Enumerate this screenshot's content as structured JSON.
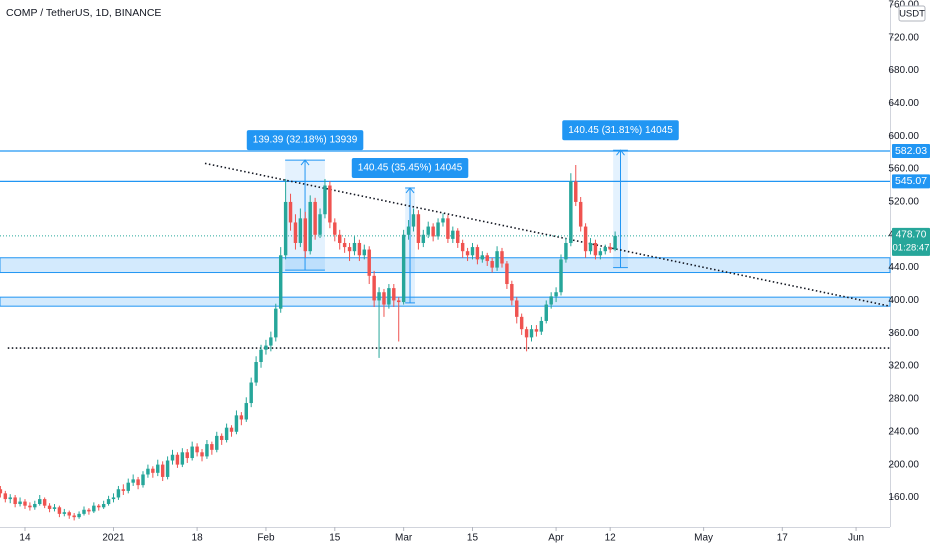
{
  "header": {
    "title": "COMP / TetherUS, 1D, BINANCE",
    "currency": "USDT"
  },
  "chart_data": {
    "type": "candlestick",
    "up_color": "#26a69a",
    "down_color": "#ef5350",
    "ohlc": [
      [
        170,
        174,
        160,
        165
      ],
      [
        165,
        168,
        154,
        158
      ],
      [
        158,
        164,
        153,
        160
      ],
      [
        160,
        163,
        148,
        152
      ],
      [
        152,
        160,
        149,
        155
      ],
      [
        155,
        158,
        146,
        150
      ],
      [
        150,
        154,
        144,
        148
      ],
      [
        148,
        156,
        145,
        152
      ],
      [
        152,
        163,
        150,
        158
      ],
      [
        158,
        160,
        147,
        150
      ],
      [
        150,
        153,
        142,
        146
      ],
      [
        146,
        152,
        143,
        148
      ],
      [
        148,
        150,
        136,
        140
      ],
      [
        140,
        146,
        137,
        142
      ],
      [
        142,
        144,
        134,
        138
      ],
      [
        138,
        141,
        132,
        136
      ],
      [
        136,
        143,
        134,
        140
      ],
      [
        140,
        149,
        138,
        145
      ],
      [
        145,
        147,
        139,
        143
      ],
      [
        143,
        154,
        141,
        150
      ],
      [
        150,
        152,
        144,
        148
      ],
      [
        148,
        156,
        146,
        152
      ],
      [
        152,
        162,
        150,
        158
      ],
      [
        158,
        165,
        154,
        160
      ],
      [
        160,
        174,
        157,
        170
      ],
      [
        170,
        176,
        163,
        168
      ],
      [
        168,
        183,
        165,
        178
      ],
      [
        178,
        188,
        174,
        182
      ],
      [
        182,
        185,
        170,
        175
      ],
      [
        175,
        192,
        172,
        188
      ],
      [
        188,
        200,
        184,
        195
      ],
      [
        195,
        198,
        184,
        190
      ],
      [
        190,
        206,
        186,
        200
      ],
      [
        200,
        204,
        180,
        185
      ],
      [
        185,
        210,
        182,
        205
      ],
      [
        205,
        218,
        200,
        212
      ],
      [
        212,
        215,
        196,
        200
      ],
      [
        200,
        220,
        197,
        215
      ],
      [
        215,
        219,
        202,
        208
      ],
      [
        208,
        228,
        205,
        222
      ],
      [
        222,
        226,
        210,
        215
      ],
      [
        215,
        219,
        204,
        210
      ],
      [
        210,
        230,
        207,
        225
      ],
      [
        225,
        228,
        212,
        218
      ],
      [
        218,
        240,
        215,
        235
      ],
      [
        235,
        238,
        224,
        230
      ],
      [
        230,
        250,
        227,
        245
      ],
      [
        245,
        248,
        234,
        240
      ],
      [
        240,
        266,
        237,
        260
      ],
      [
        260,
        264,
        248,
        255
      ],
      [
        255,
        282,
        252,
        275
      ],
      [
        275,
        306,
        270,
        300
      ],
      [
        300,
        332,
        296,
        325
      ],
      [
        325,
        346,
        318,
        340
      ],
      [
        340,
        352,
        334,
        345
      ],
      [
        345,
        362,
        338,
        355
      ],
      [
        355,
        396,
        350,
        390
      ],
      [
        390,
        465,
        385,
        455
      ],
      [
        455,
        548,
        450,
        520
      ],
      [
        520,
        530,
        485,
        495
      ],
      [
        495,
        505,
        462,
        470
      ],
      [
        470,
        512,
        465,
        500
      ],
      [
        500,
        508,
        452,
        460
      ],
      [
        460,
        528,
        456,
        520
      ],
      [
        520,
        525,
        474,
        480
      ],
      [
        480,
        512,
        476,
        505
      ],
      [
        505,
        548,
        500,
        540
      ],
      [
        540,
        545,
        488,
        495
      ],
      [
        495,
        500,
        472,
        480
      ],
      [
        480,
        486,
        462,
        470
      ],
      [
        470,
        476,
        458,
        465
      ],
      [
        465,
        470,
        448,
        460
      ],
      [
        460,
        478,
        455,
        470
      ],
      [
        470,
        474,
        448,
        455
      ],
      [
        455,
        468,
        450,
        462
      ],
      [
        462,
        466,
        420,
        430
      ],
      [
        430,
        436,
        392,
        400
      ],
      [
        400,
        416,
        330,
        410
      ],
      [
        410,
        414,
        380,
        395
      ],
      [
        395,
        420,
        390,
        415
      ],
      [
        415,
        420,
        392,
        400
      ],
      [
        400,
        404,
        350,
        398
      ],
      [
        398,
        486,
        395,
        480
      ],
      [
        480,
        498,
        474,
        490
      ],
      [
        490,
        512,
        484,
        505
      ],
      [
        505,
        510,
        462,
        470
      ],
      [
        470,
        486,
        465,
        480
      ],
      [
        480,
        496,
        476,
        490
      ],
      [
        490,
        494,
        472,
        478
      ],
      [
        478,
        500,
        474,
        495
      ],
      [
        495,
        506,
        490,
        500
      ],
      [
        500,
        504,
        470,
        475
      ],
      [
        475,
        490,
        470,
        485
      ],
      [
        485,
        488,
        464,
        470
      ],
      [
        470,
        474,
        452,
        460
      ],
      [
        460,
        464,
        448,
        455
      ],
      [
        455,
        470,
        450,
        465
      ],
      [
        465,
        468,
        444,
        450
      ],
      [
        450,
        460,
        446,
        455
      ],
      [
        455,
        458,
        442,
        448
      ],
      [
        448,
        452,
        434,
        440
      ],
      [
        440,
        466,
        436,
        460
      ],
      [
        460,
        464,
        440,
        445
      ],
      [
        445,
        448,
        414,
        420
      ],
      [
        420,
        424,
        394,
        400
      ],
      [
        400,
        404,
        372,
        380
      ],
      [
        380,
        384,
        358,
        365
      ],
      [
        365,
        368,
        338,
        355
      ],
      [
        355,
        370,
        350,
        365
      ],
      [
        365,
        370,
        356,
        362
      ],
      [
        362,
        380,
        358,
        375
      ],
      [
        375,
        400,
        372,
        395
      ],
      [
        395,
        410,
        390,
        405
      ],
      [
        405,
        416,
        398,
        410
      ],
      [
        410,
        456,
        406,
        450
      ],
      [
        450,
        476,
        446,
        470
      ],
      [
        470,
        555,
        466,
        545
      ],
      [
        545,
        565,
        515,
        520
      ],
      [
        520,
        526,
        484,
        490
      ],
      [
        490,
        494,
        452,
        460
      ],
      [
        460,
        476,
        456,
        470
      ],
      [
        470,
        474,
        450,
        455
      ],
      [
        455,
        464,
        450,
        460
      ],
      [
        460,
        468,
        456,
        465
      ],
      [
        465,
        470,
        458,
        462
      ],
      [
        462,
        484,
        460,
        478.7
      ]
    ],
    "xlim": [
      -0.08,
      180.9
    ],
    "xticks": [
      {
        "value": 5,
        "label": "14"
      },
      {
        "value": 23,
        "label": "2021"
      },
      {
        "value": 40,
        "label": "18"
      },
      {
        "value": 54,
        "label": "Feb"
      },
      {
        "value": 68,
        "label": "15"
      },
      {
        "value": 82,
        "label": "Mar"
      },
      {
        "value": 96,
        "label": "15"
      },
      {
        "value": 113,
        "label": "Apr"
      },
      {
        "value": 124,
        "label": "12"
      },
      {
        "value": 143,
        "label": "May"
      },
      {
        "value": 159,
        "label": "17"
      },
      {
        "value": 174,
        "label": "Jun"
      }
    ],
    "ylim": [
      124,
      766
    ],
    "yticks": [
      {
        "value": 160,
        "label": "160.00"
      },
      {
        "value": 200,
        "label": "200.00"
      },
      {
        "value": 240,
        "label": "240.00"
      },
      {
        "value": 280,
        "label": "280.00"
      },
      {
        "value": 320,
        "label": "320.00"
      },
      {
        "value": 360,
        "label": "360.00"
      },
      {
        "value": 400,
        "label": "400.00"
      },
      {
        "value": 440,
        "label": "440.00"
      },
      {
        "value": 480,
        "label": "480.00"
      },
      {
        "value": 520,
        "label": "520.00"
      },
      {
        "value": 560,
        "label": "560.00"
      },
      {
        "value": 600,
        "label": "600.00"
      },
      {
        "value": 640,
        "label": "640.00"
      },
      {
        "value": 680,
        "label": "680.00"
      },
      {
        "value": 720,
        "label": "720.00"
      },
      {
        "value": 760,
        "label": "760.00"
      }
    ],
    "last_price": {
      "value": 478.7,
      "label": "478.70"
    },
    "countdown": "01:28:47",
    "levels": [
      {
        "value": 582.03,
        "color": "#2196f3"
      },
      {
        "value": 545.07,
        "color": "#2196f3"
      }
    ],
    "zones": [
      {
        "from": 434,
        "to": 452
      },
      {
        "from": 393,
        "to": 404
      }
    ],
    "trendlines": [
      {
        "x": [
          41.6,
          180.9
        ],
        "y": [
          567,
          393
        ]
      },
      {
        "x": [
          1.5,
          180.9
        ],
        "y": [
          342,
          342
        ]
      }
    ],
    "measures": [
      {
        "label": "139.39 (32.18%) 13939",
        "x": [
          57.9,
          66
        ],
        "y": [
          437,
          571
        ]
      },
      {
        "label": "140.45 (35.45%) 14045",
        "x": [
          82.3,
          84.3
        ],
        "y": [
          397,
          537
        ]
      },
      {
        "label": "140.45 (31.81%) 14045",
        "x": [
          124.6,
          127.6
        ],
        "y": [
          440,
          583
        ]
      }
    ]
  }
}
